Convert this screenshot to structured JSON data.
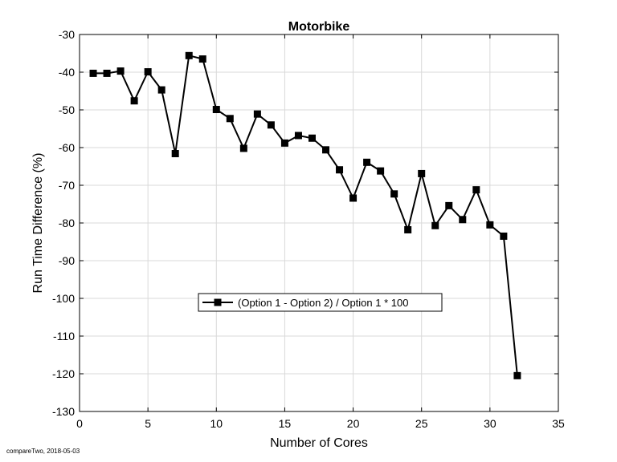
{
  "chart_data": {
    "type": "line",
    "title": "Motorbike",
    "xlabel": "Number of Cores",
    "ylabel": "Run Time Difference (%)",
    "xlim": [
      0,
      35
    ],
    "ylim": [
      -130,
      -30
    ],
    "xticks": [
      0,
      5,
      10,
      15,
      20,
      25,
      30,
      35
    ],
    "yticks": [
      -30,
      -40,
      -50,
      -60,
      -70,
      -80,
      -90,
      -100,
      -110,
      -120,
      -130
    ],
    "grid": true,
    "legend_position": "center-bottom",
    "series": [
      {
        "name": "(Option 1 - Option 2) / Option 1 * 100",
        "color": "#000000",
        "marker": "square",
        "x": [
          1,
          2,
          3,
          4,
          5,
          6,
          7,
          8,
          9,
          10,
          11,
          12,
          13,
          14,
          15,
          16,
          17,
          18,
          19,
          20,
          21,
          22,
          23,
          24,
          25,
          26,
          27,
          28,
          29,
          30,
          31,
          32
        ],
        "y": [
          -40.3,
          -40.3,
          -39.7,
          -47.6,
          -39.9,
          -44.7,
          -61.6,
          -35.6,
          -36.5,
          -49.9,
          -52.3,
          -60.2,
          -51.1,
          -54.0,
          -58.8,
          -56.8,
          -57.5,
          -60.6,
          -65.9,
          -73.4,
          -63.9,
          -66.2,
          -72.3,
          -81.8,
          -66.9,
          -80.7,
          -75.4,
          -79.1,
          -71.2,
          -80.5,
          -83.5,
          -120.5
        ]
      }
    ]
  },
  "footnote": "compareTwo, 2018-05-03"
}
